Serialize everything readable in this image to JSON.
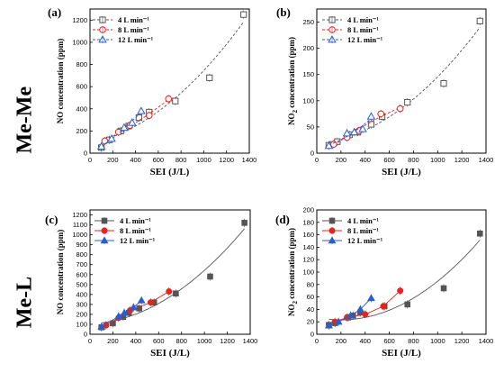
{
  "row_labels": [
    "Me-Me",
    "Me-L"
  ],
  "colors": {
    "series_4": "#555555",
    "series_8": "#e8231f",
    "series_12": "#2a5ec9",
    "fit": "#555555"
  },
  "chart_data": [
    {
      "panel": "(a)",
      "type": "scatter",
      "style": "hollow",
      "fit": "dashed",
      "xlabel": "SEI (J/L)",
      "ylabel_parts": [
        "NO concentration (ppm)"
      ],
      "xlim": [
        0,
        1400
      ],
      "ylim": [
        0,
        1300
      ],
      "xticks": [
        0,
        200,
        400,
        600,
        800,
        1000,
        1200,
        1400
      ],
      "yticks": [
        0,
        200,
        400,
        600,
        800,
        1000,
        1200
      ],
      "series": [
        {
          "name": "4 L min⁻¹",
          "marker": "square",
          "color": "#555555",
          "x": [
            100,
            170,
            270,
            340,
            430,
            520,
            750,
            1050,
            1350
          ],
          "y": [
            50,
            120,
            200,
            245,
            320,
            370,
            470,
            680,
            1250
          ]
        },
        {
          "name": "8 L min⁻¹",
          "marker": "circle",
          "color": "#e8231f",
          "x": [
            130,
            250,
            350,
            520,
            690
          ],
          "y": [
            110,
            190,
            250,
            340,
            490
          ]
        },
        {
          "name": "12 L min⁻¹",
          "marker": "triangle",
          "color": "#2a5ec9",
          "x": [
            100,
            190,
            300,
            370,
            450
          ],
          "y": [
            60,
            130,
            230,
            275,
            380
          ]
        }
      ]
    },
    {
      "panel": "(b)",
      "type": "scatter",
      "style": "hollow",
      "fit": "dashed",
      "xlabel": "SEI (J/L)",
      "ylabel_parts": [
        "NO",
        "2",
        " concentration (ppm)"
      ],
      "xlim": [
        0,
        1400
      ],
      "ylim": [
        0,
        275
      ],
      "xticks": [
        0,
        200,
        400,
        600,
        800,
        1000,
        1200,
        1400
      ],
      "yticks": [
        0,
        50,
        100,
        150,
        200,
        250
      ],
      "series": [
        {
          "name": "4 L min⁻¹",
          "marker": "square",
          "color": "#555555",
          "x": [
            100,
            170,
            270,
            340,
            450,
            540,
            750,
            1050,
            1350
          ],
          "y": [
            15,
            22,
            35,
            40,
            55,
            70,
            97,
            133,
            252
          ]
        },
        {
          "name": "8 L min⁻¹",
          "marker": "circle",
          "color": "#e8231f",
          "x": [
            140,
            250,
            350,
            530,
            690
          ],
          "y": [
            17,
            30,
            43,
            75,
            85
          ]
        },
        {
          "name": "12 L min⁻¹",
          "marker": "triangle",
          "color": "#2a5ec9",
          "x": [
            100,
            250,
            310,
            380,
            450
          ],
          "y": [
            14,
            38,
            40,
            46,
            70
          ]
        }
      ]
    },
    {
      "panel": "(c)",
      "type": "scatter",
      "style": "filled",
      "fit": "solid",
      "xlabel": "SEI (J/L)",
      "ylabel_parts": [
        "NO concentration (ppm)"
      ],
      "xlim": [
        0,
        1400
      ],
      "ylim": [
        0,
        1250
      ],
      "xticks": [
        0,
        200,
        400,
        600,
        800,
        1000,
        1200,
        1400
      ],
      "yticks": [
        0,
        100,
        200,
        300,
        400,
        500,
        600,
        700,
        800,
        900,
        1000,
        1100,
        1200
      ],
      "series": [
        {
          "name": "4 L min⁻¹",
          "marker": "square",
          "color": "#555555",
          "x": [
            100,
            200,
            290,
            340,
            430,
            560,
            750,
            1050,
            1350
          ],
          "y": [
            70,
            110,
            175,
            215,
            260,
            320,
            410,
            580,
            1120
          ]
        },
        {
          "name": "8 L min⁻¹",
          "marker": "circle",
          "color": "#e8231f",
          "x": [
            140,
            250,
            350,
            530,
            690
          ],
          "y": [
            90,
            165,
            240,
            320,
            430
          ]
        },
        {
          "name": "12 L min⁻¹",
          "marker": "triangle",
          "color": "#2a5ec9",
          "x": [
            100,
            250,
            300,
            380,
            450
          ],
          "y": [
            75,
            180,
            215,
            270,
            340
          ]
        }
      ]
    },
    {
      "panel": "(d)",
      "type": "scatter",
      "style": "filled",
      "fit": "solid",
      "xlabel": "SEI (J/L)",
      "ylabel_parts": [
        "NO",
        "2",
        " concentration (ppm)"
      ],
      "xlim": [
        0,
        1400
      ],
      "ylim": [
        0,
        200
      ],
      "xticks": [
        0,
        200,
        400,
        600,
        800,
        1000,
        1200,
        1400
      ],
      "yticks": [
        0,
        20,
        40,
        60,
        80,
        100,
        120,
        140,
        160,
        180,
        200
      ],
      "series": [
        {
          "name": "4 L min⁻¹",
          "marker": "square",
          "color": "#555555",
          "x": [
            100,
            150,
            260,
            300,
            360,
            560,
            750,
            1050,
            1350
          ],
          "y": [
            15,
            18,
            27,
            30,
            35,
            45,
            48,
            74,
            162
          ]
        },
        {
          "name": "8 L min⁻¹",
          "marker": "circle",
          "color": "#e8231f",
          "x": [
            150,
            250,
            400,
            550,
            690
          ],
          "y": [
            20,
            27,
            32,
            45,
            70
          ]
        },
        {
          "name": "12 L min⁻¹",
          "marker": "triangle",
          "color": "#2a5ec9",
          "x": [
            100,
            180,
            280,
            360,
            450
          ],
          "y": [
            14,
            20,
            30,
            40,
            58
          ]
        }
      ]
    }
  ]
}
